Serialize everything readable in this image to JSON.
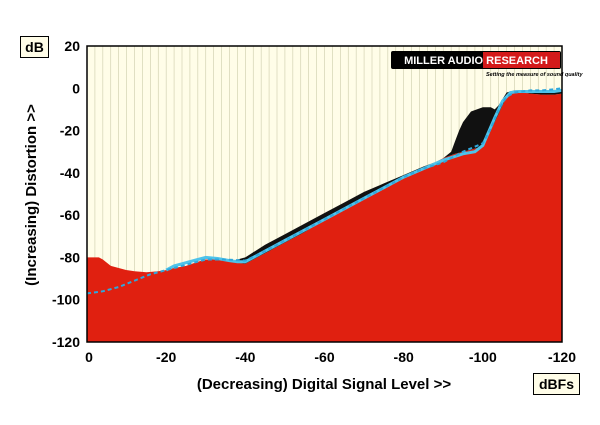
{
  "chart_data": {
    "type": "area",
    "title": "",
    "xlabel": "(Decreasing) Digital Signal Level >>",
    "ylabel": "(Increasing) Distortion >>",
    "x_unit": "dBFs",
    "y_unit": "dB",
    "xlim": [
      0,
      -120
    ],
    "ylim": [
      -120,
      20
    ],
    "xticks": [
      "0",
      "-20",
      "-40",
      "-60",
      "-80",
      "-100",
      "-120"
    ],
    "yticks": [
      "20",
      "0",
      "-20",
      "-40",
      "-60",
      "-80",
      "-100",
      "-120"
    ],
    "grid": "vertical",
    "legend": "none",
    "logo": {
      "text": "MILLER AUDIO RESEARCH",
      "tagline": "Setting the measure of sound quality"
    },
    "colors": {
      "background": "#fffde8",
      "grid": "#ccccaa",
      "red_area": "#e02010",
      "black_area": "#111111",
      "cyan_line": "#4ec3ea",
      "cyan_dashed": "#2fa7dc"
    },
    "series": [
      {
        "style": "red-area",
        "x": [
          0,
          1,
          3,
          4,
          6,
          8,
          10,
          12,
          15,
          18,
          20,
          22,
          25,
          28,
          30,
          33,
          36,
          38,
          40,
          45,
          50,
          55,
          60,
          65,
          70,
          75,
          80,
          85,
          90,
          93,
          95,
          97,
          99,
          100,
          102,
          104,
          105,
          106,
          108,
          110,
          112,
          115,
          118,
          120
        ],
        "y": [
          -80,
          -80,
          -80,
          -81,
          -84,
          -85,
          -86,
          -86.5,
          -87,
          -86.5,
          -86,
          -85,
          -84,
          -82,
          -81,
          -81,
          -82,
          -82.5,
          -83,
          -78,
          -73,
          -68,
          -62,
          -57,
          -52,
          -47,
          -42,
          -38,
          -33,
          -31,
          -30,
          -29,
          -28,
          -27,
          -20,
          -12,
          -8,
          -4,
          -2,
          -2,
          -2.5,
          -3,
          -3,
          -2.5
        ]
      },
      {
        "style": "black-area-top",
        "x": [
          38,
          40,
          45,
          50,
          55,
          60,
          65,
          70,
          75,
          80,
          85,
          88,
          90,
          92,
          93,
          94,
          95,
          97,
          100,
          102,
          103,
          104,
          106,
          108,
          110,
          112,
          115,
          118,
          120
        ],
        "y": [
          -81,
          -80,
          -74,
          -69,
          -64,
          -59,
          -54,
          -49,
          -45,
          -41,
          -37,
          -35,
          -33,
          -30,
          -25,
          -20,
          -16,
          -11,
          -9,
          -9,
          -10,
          -8,
          -2,
          -1,
          -1,
          -1,
          -1,
          -1,
          -0.5
        ]
      },
      {
        "style": "cyan-line",
        "x": [
          20,
          22,
          25,
          28,
          30,
          33,
          36,
          38,
          40,
          42,
          45,
          50,
          55,
          60,
          65,
          70,
          75,
          80,
          85,
          90,
          95,
          98,
          100,
          103,
          105,
          107,
          109,
          112,
          115,
          118,
          120
        ],
        "y": [
          -86,
          -84,
          -82.5,
          -81,
          -80,
          -80.5,
          -81.5,
          -82,
          -82,
          -80,
          -77,
          -72,
          -67,
          -62,
          -57,
          -52,
          -47,
          -42,
          -38,
          -34,
          -31,
          -30,
          -27,
          -14,
          -6,
          -2,
          -1.5,
          -1.5,
          -1.5,
          -1.5,
          -1
        ]
      },
      {
        "style": "cyan-dashed",
        "x": [
          0,
          4,
          8,
          12,
          16,
          20,
          25,
          30,
          35,
          40,
          45,
          50,
          55,
          60,
          65,
          70,
          75,
          80,
          85,
          90,
          95,
          100,
          102,
          104,
          106,
          108,
          110,
          112,
          115,
          118,
          120
        ],
        "y": [
          -97,
          -96,
          -94,
          -91,
          -88,
          -86,
          -83.5,
          -81,
          -81,
          -81.5,
          -77,
          -72,
          -67,
          -62,
          -57,
          -52,
          -47,
          -42,
          -38,
          -35,
          -30,
          -26,
          -19,
          -10,
          -4,
          -2,
          -1.5,
          -1,
          -1,
          -0.5,
          0
        ]
      }
    ]
  }
}
